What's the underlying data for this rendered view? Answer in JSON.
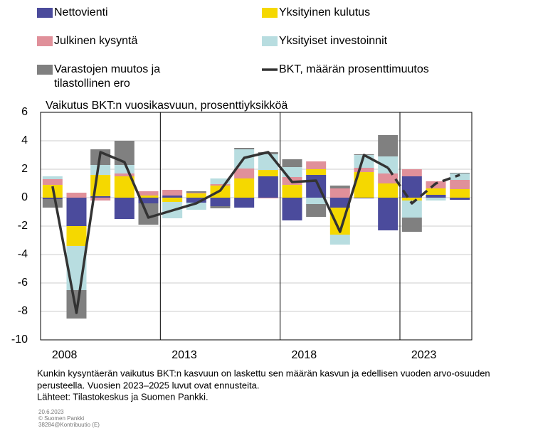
{
  "chart_data": {
    "type": "bar",
    "ylabel": "Vaikutus BKT:n vuosikasvuun, prosenttiyksikköä",
    "categories": [
      null,
      null,
      null,
      null,
      null,
      "2013",
      null,
      null,
      null,
      null,
      "2018",
      null,
      null,
      null,
      null,
      "2023",
      null,
      null
    ],
    "first_category": "2008",
    "ylim": [
      -10,
      6
    ],
    "yticks": [
      -10,
      -8,
      -6,
      -4,
      -2,
      0,
      2,
      4,
      6
    ],
    "grid": true,
    "series": [
      {
        "name": "Nettovienti",
        "color": "#4b4b9c",
        "values": [
          -0.1,
          -2.0,
          0.1,
          -1.5,
          -0.4,
          0.15,
          -0.35,
          -0.6,
          -0.7,
          1.5,
          -1.6,
          1.6,
          -0.7,
          -0.05,
          -2.3,
          1.5,
          0.2,
          -0.15
        ]
      },
      {
        "name": "Yksityinen kulutus",
        "color": "#f5d800",
        "values": [
          0.9,
          -1.4,
          1.5,
          1.5,
          0.15,
          -0.3,
          0.3,
          0.85,
          1.35,
          0.45,
          0.9,
          0.4,
          -1.9,
          1.8,
          1.0,
          -0.2,
          0.45,
          0.6
        ]
      },
      {
        "name": "Julkinen kysyntä",
        "color": "#e0909a",
        "values": [
          0.4,
          0.35,
          -0.2,
          0.2,
          0.3,
          0.4,
          0.05,
          0.1,
          0.7,
          -0.05,
          0.55,
          0.55,
          0.65,
          0.3,
          0.7,
          0.5,
          0.5,
          0.65
        ]
      },
      {
        "name": "Yksityiset investoinnit",
        "color": "#b8dde0",
        "values": [
          0.2,
          -3.1,
          0.7,
          0.6,
          0.0,
          -1.15,
          -0.5,
          0.4,
          1.35,
          1.1,
          0.7,
          -0.45,
          -0.7,
          0.9,
          1.2,
          -1.2,
          -0.2,
          0.45
        ]
      },
      {
        "name": "Varastojen muutos ja tilastollinen ero",
        "color": "#808080",
        "values": [
          -0.6,
          -2.0,
          1.1,
          1.7,
          -1.5,
          0.0,
          0.1,
          -0.15,
          0.1,
          0.15,
          0.55,
          -0.9,
          0.2,
          0.05,
          1.5,
          -1.0,
          0.0,
          0.05
        ]
      },
      {
        "name": "BKT, määrän prosenttimuutos",
        "color": "#333333",
        "type": "line",
        "dashed_from": "2023",
        "values": [
          0.8,
          -8.1,
          3.2,
          2.5,
          -1.4,
          -0.9,
          -0.4,
          0.5,
          2.8,
          3.2,
          1.1,
          1.2,
          -2.4,
          3.0,
          2.1,
          -0.4,
          1.0,
          1.6
        ]
      }
    ],
    "notes": [
      "Kunkin kysyntäerän vaikutus BKT:n kasvuun on laskettu sen määrän kasvun ja edellisen vuoden arvo-osuuden",
      "perusteella. Vuosien 2023–2025 luvut ovat ennusteita.",
      "Lähteet: Tilastokeskus ja Suomen Pankki."
    ],
    "footer": [
      "20.6.2023",
      "© Suomen Pankki",
      "38284@Kontribuutio (E)"
    ]
  }
}
